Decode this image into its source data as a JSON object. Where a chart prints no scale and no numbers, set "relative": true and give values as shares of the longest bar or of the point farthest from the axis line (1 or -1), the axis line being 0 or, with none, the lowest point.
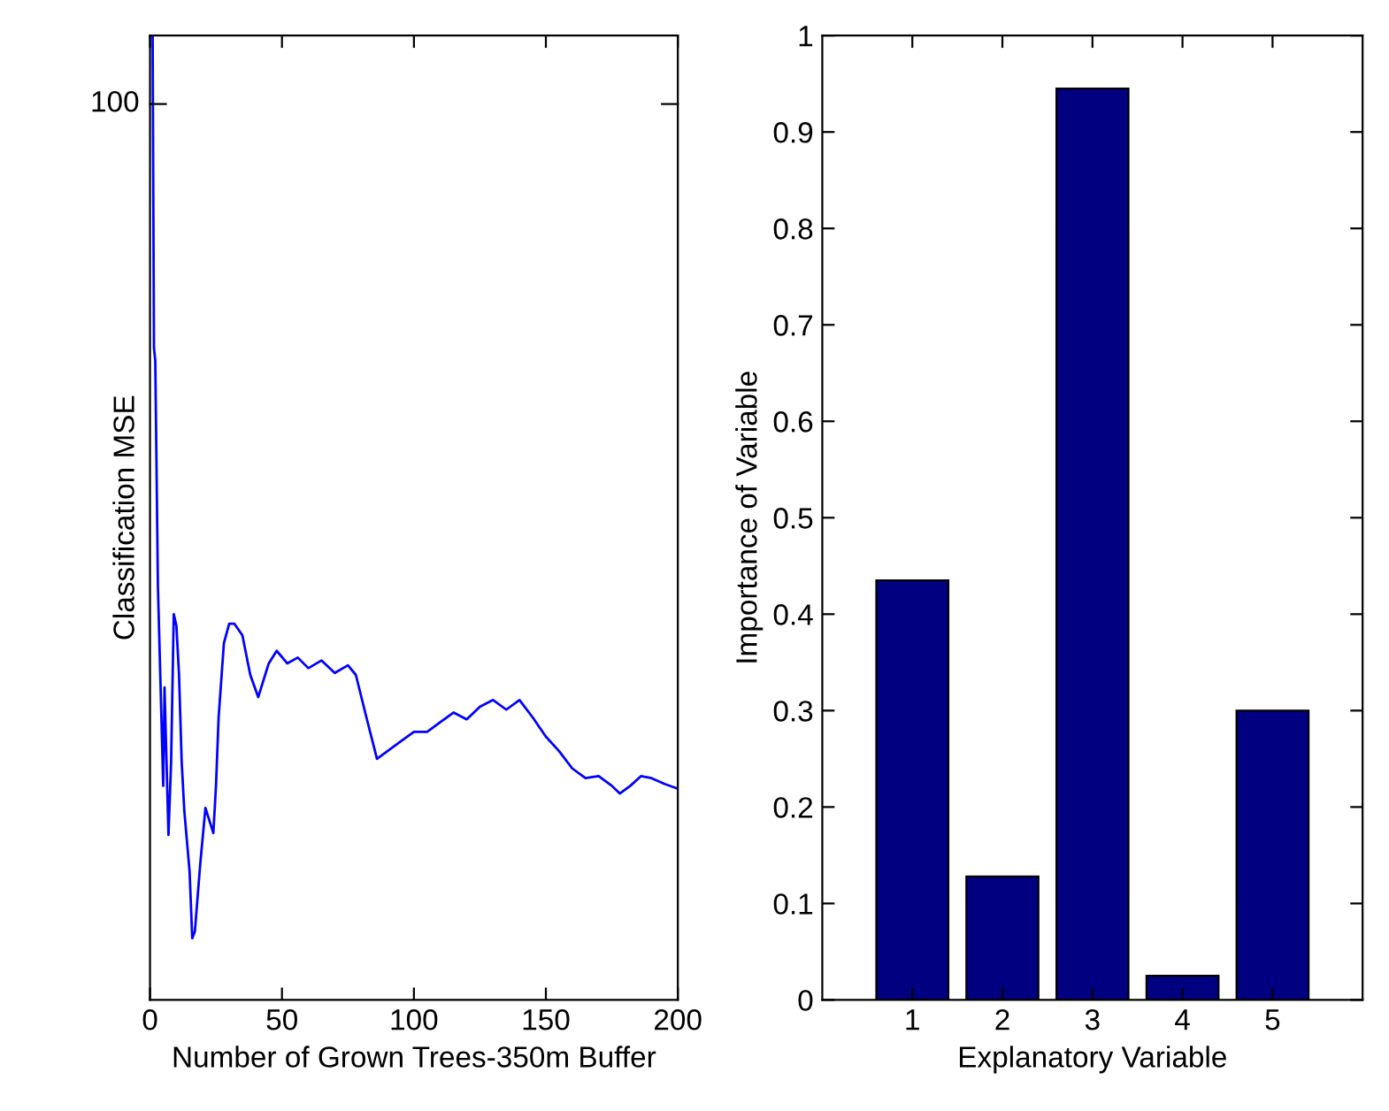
{
  "chart_data": [
    {
      "type": "line",
      "relative": true,
      "xlabel": "Number of Grown Trees-350m Buffer",
      "ylabel": "Classification MSE",
      "xlim": [
        0,
        200
      ],
      "xticks": [
        0,
        50,
        100,
        150,
        200
      ],
      "annotations": [
        "100"
      ],
      "grid": false,
      "legend": false,
      "series": [
        {
          "color": "#0000ff",
          "x": [
            1,
            1.5,
            2,
            3,
            5,
            5.5,
            7,
            8,
            9,
            10,
            11,
            12,
            13,
            15,
            16,
            17,
            19,
            21,
            24,
            25,
            26,
            28,
            30,
            32,
            35,
            38,
            41,
            45,
            48,
            52,
            56,
            60,
            65,
            70,
            75,
            78,
            82,
            86,
            90,
            95,
            100,
            105,
            110,
            115,
            120,
            125,
            130,
            135,
            140,
            145,
            150,
            155,
            160,
            165,
            170,
            175,
            178,
            182,
            186,
            190,
            195,
            200
          ],
          "values": [
            1.0,
            0.676,
            0.663,
            0.429,
            0.222,
            0.324,
            0.171,
            0.247,
            0.4,
            0.388,
            0.337,
            0.247,
            0.196,
            0.133,
            0.064,
            0.071,
            0.14,
            0.199,
            0.173,
            0.222,
            0.293,
            0.37,
            0.39,
            0.39,
            0.378,
            0.337,
            0.314,
            0.349,
            0.362,
            0.349,
            0.355,
            0.344,
            0.352,
            0.339,
            0.347,
            0.337,
            0.293,
            0.25,
            0.258,
            0.268,
            0.278,
            0.278,
            0.288,
            0.298,
            0.291,
            0.304,
            0.311,
            0.301,
            0.311,
            0.293,
            0.273,
            0.258,
            0.24,
            0.23,
            0.232,
            0.222,
            0.214,
            0.222,
            0.232,
            0.23,
            0.224,
            0.219
          ]
        }
      ]
    },
    {
      "type": "bar",
      "xlabel": "Explanatory Variable",
      "ylabel": "Importance of Variable",
      "categories": [
        "1",
        "2",
        "3",
        "4",
        "5"
      ],
      "ylim": [
        0,
        1
      ],
      "yticks": [
        0,
        0.1,
        0.2,
        0.3,
        0.4,
        0.5,
        0.6,
        0.7,
        0.8,
        0.9,
        1
      ],
      "grid": false,
      "legend": false,
      "series": [
        {
          "color": "#000080",
          "values": [
            0.435,
            0.128,
            0.945,
            0.025,
            0.3
          ]
        }
      ]
    }
  ]
}
